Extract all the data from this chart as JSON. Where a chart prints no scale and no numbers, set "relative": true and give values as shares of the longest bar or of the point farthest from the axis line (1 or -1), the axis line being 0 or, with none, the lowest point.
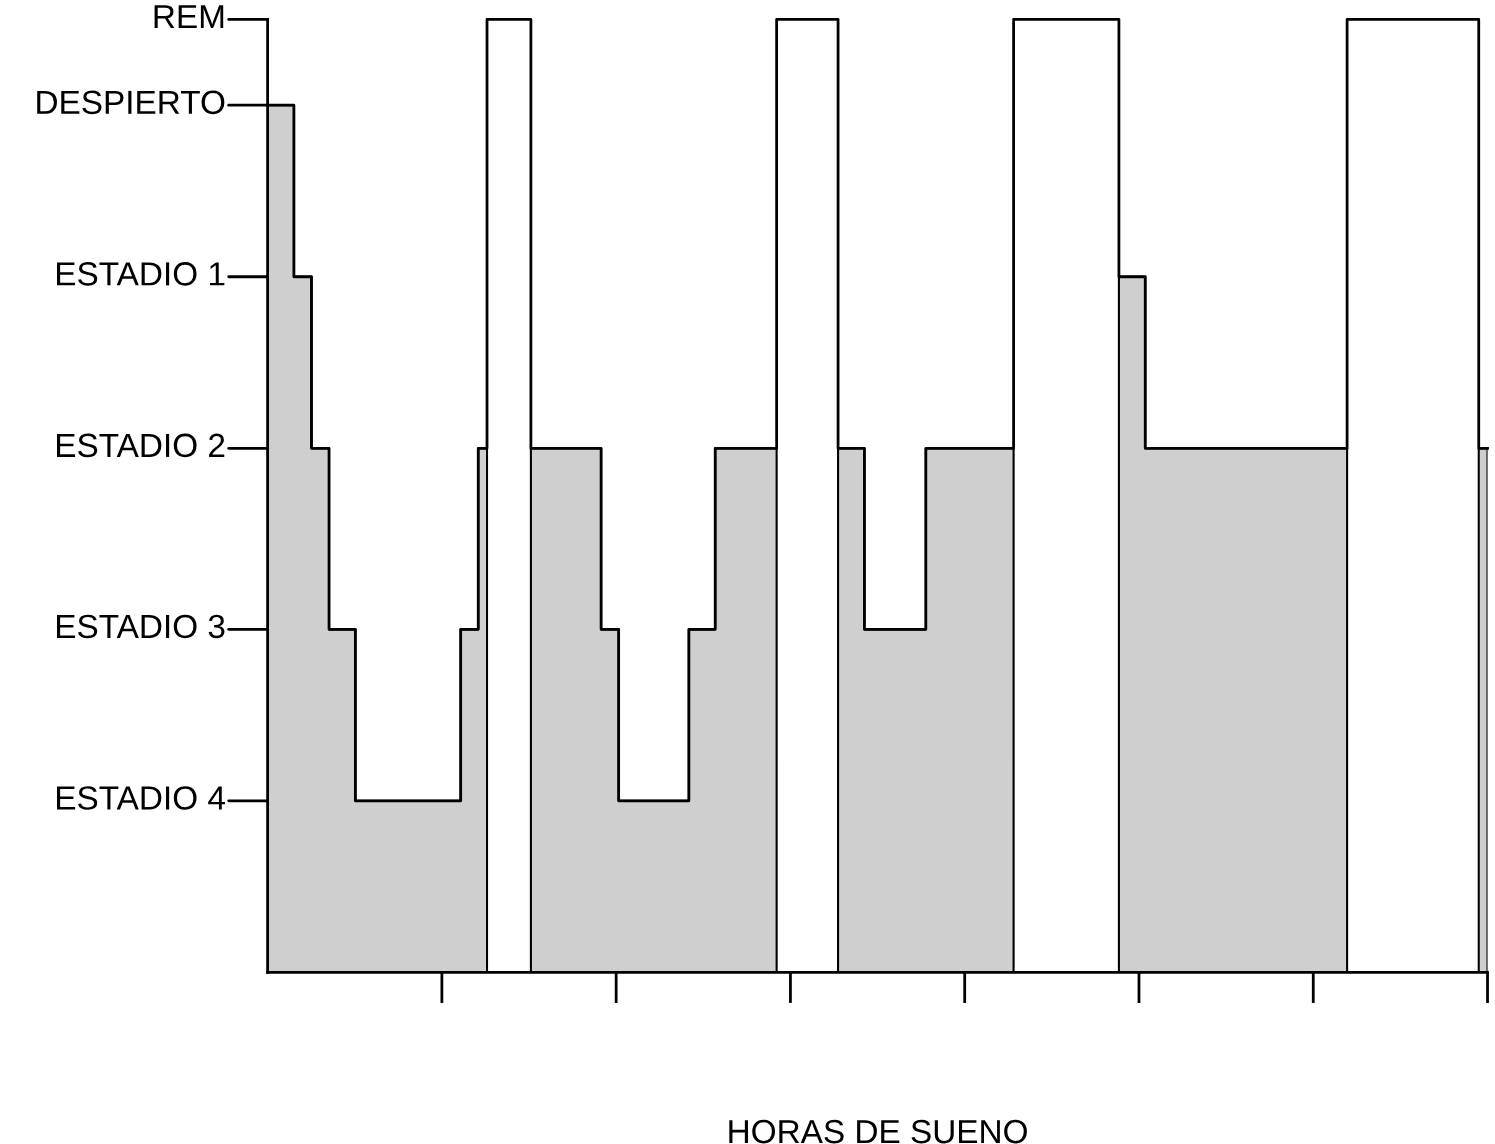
{
  "chart_data": {
    "type": "step",
    "xlabel": "HORAS DE SUENO",
    "categories": [
      null,
      null,
      null,
      null,
      null,
      null,
      null,
      null,
      null,
      null,
      null,
      null,
      null,
      null,
      null,
      null,
      null,
      null,
      null,
      null,
      null,
      null,
      null,
      null,
      null,
      null,
      null,
      null,
      null,
      null,
      null,
      null,
      null,
      null,
      null,
      null,
      null,
      null,
      null,
      null,
      null,
      null,
      null,
      null,
      null,
      null,
      null,
      null,
      null,
      null,
      null,
      null,
      null,
      null,
      null,
      null,
      null,
      null,
      null,
      null,
      null,
      null,
      null,
      null,
      null,
      null,
      null,
      null,
      null,
      null,
      null,
      null,
      null,
      null,
      null,
      null,
      null,
      null,
      null,
      null,
      null,
      null,
      null,
      null,
      null,
      null,
      null,
      null,
      null,
      null,
      null,
      null,
      null,
      null,
      null,
      null,
      null,
      null,
      null,
      null,
      null,
      null,
      null,
      null,
      null,
      null,
      null,
      null,
      null,
      null,
      null,
      null,
      null,
      null,
      null,
      null,
      null,
      null,
      null,
      null,
      null,
      null,
      null,
      null,
      null,
      null,
      null,
      null,
      null,
      null,
      null,
      null,
      null,
      null,
      null,
      null,
      null,
      null,
      null,
      null
    ],
    "series": [
      {
        "type": "area",
        "color": "#cfcfcf",
        "values": [
          0.91,
          0.91,
          0.91,
          0.73,
          0.73,
          0.55,
          0.55,
          0.36,
          0.36,
          0.36,
          0.18,
          0.18,
          0.18,
          0.18,
          0.18,
          0.18,
          0.18,
          0.18,
          0.18,
          0.18,
          0.18,
          0.18,
          0.36,
          0.36,
          0.55,
          null,
          null,
          null,
          null,
          null,
          0.55,
          0.55,
          0.55,
          0.55,
          0.55,
          0.55,
          0.55,
          0.55,
          0.36,
          0.36,
          0.18,
          0.18,
          0.18,
          0.18,
          0.18,
          0.18,
          0.18,
          0.18,
          0.36,
          0.36,
          0.36,
          0.55,
          0.55,
          0.55,
          0.55,
          0.55,
          0.55,
          0.55,
          null,
          null,
          null,
          null,
          null,
          null,
          null,
          0.55,
          0.55,
          0.55,
          0.36,
          0.36,
          0.36,
          0.36,
          0.36,
          0.36,
          0.36,
          0.55,
          0.55,
          0.55,
          0.55,
          0.55,
          0.55,
          0.55,
          0.55,
          0.55,
          0.55,
          null,
          null,
          null,
          null,
          null,
          null,
          null,
          null,
          null,
          null,
          null,
          null,
          0.73,
          0.73,
          0.73,
          0.55,
          0.55,
          0.55,
          0.55,
          0.55,
          0.55,
          0.55,
          0.55,
          0.55,
          0.55,
          0.55,
          0.55,
          0.55,
          0.55,
          0.55,
          0.55,
          0.55,
          0.55,
          0.55,
          0.55,
          0.55,
          0.55,
          0.55,
          null,
          null,
          null,
          null,
          null,
          null,
          null,
          null,
          null,
          null,
          null,
          null,
          null,
          null,
          null,
          0.55,
          0.55
        ]
      },
      {
        "color": "#000000",
        "values": [
          0.91,
          0.91,
          0.91,
          0.73,
          0.73,
          0.55,
          0.55,
          0.36,
          0.36,
          0.36,
          0.18,
          0.18,
          0.18,
          0.18,
          0.18,
          0.18,
          0.18,
          0.18,
          0.18,
          0.18,
          0.18,
          0.18,
          0.36,
          0.36,
          0.55,
          1,
          1,
          1,
          1,
          1,
          0.55,
          0.55,
          0.55,
          0.55,
          0.55,
          0.55,
          0.55,
          0.55,
          0.36,
          0.36,
          0.18,
          0.18,
          0.18,
          0.18,
          0.18,
          0.18,
          0.18,
          0.18,
          0.36,
          0.36,
          0.36,
          0.55,
          0.55,
          0.55,
          0.55,
          0.55,
          0.55,
          0.55,
          1,
          1,
          1,
          1,
          1,
          1,
          1,
          0.55,
          0.55,
          0.55,
          0.36,
          0.36,
          0.36,
          0.36,
          0.36,
          0.36,
          0.36,
          0.55,
          0.55,
          0.55,
          0.55,
          0.55,
          0.55,
          0.55,
          0.55,
          0.55,
          0.55,
          1,
          1,
          1,
          1,
          1,
          1,
          1,
          1,
          1,
          1,
          1,
          1,
          0.73,
          0.73,
          0.73,
          0.55,
          0.55,
          0.55,
          0.55,
          0.55,
          0.55,
          0.55,
          0.55,
          0.55,
          0.55,
          0.55,
          0.55,
          0.55,
          0.55,
          0.55,
          0.55,
          0.55,
          0.55,
          0.55,
          0.55,
          0.55,
          0.55,
          0.55,
          1,
          1,
          1,
          1,
          1,
          1,
          1,
          1,
          1,
          1,
          1,
          1,
          1,
          1,
          1,
          0.55,
          0.55
        ]
      }
    ],
    "relative": true,
    "annotations": [
      "ESTADIO 4",
      "ESTADIO 3",
      "ESTADIO 2",
      "ESTADIO 1",
      "DESPIERTO",
      "REM"
    ],
    "grid": false,
    "line_style": "solid"
  }
}
